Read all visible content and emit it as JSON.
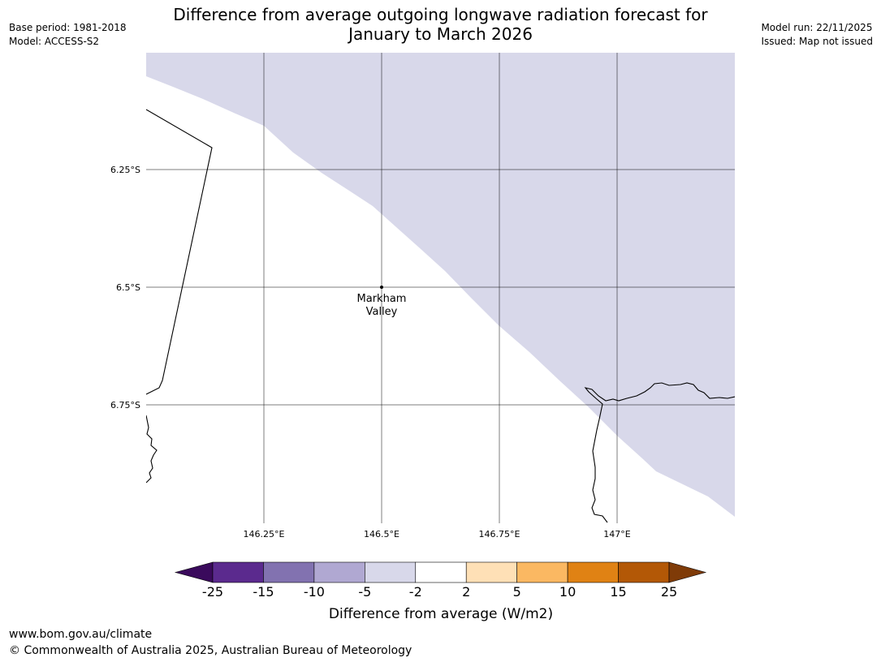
{
  "header": {
    "title_line1": "Difference from average outgoing longwave radiation forecast for",
    "title_line2": "January to March 2026",
    "base_period": "Base period: 1981-2018",
    "model": "Model: ACCESS-S2",
    "model_run": "Model run: 22/11/2025",
    "issued": "Issued: Map not issued"
  },
  "map": {
    "lat_labels": [
      "6.25°S",
      "6.5°S",
      "6.75°S"
    ],
    "lon_labels": [
      "146.25°E",
      "146.5°E",
      "146.75°E",
      "147°E"
    ],
    "place_marker": {
      "line1": "Markham",
      "line2": "Valley"
    },
    "shading_category": "-5 to -2",
    "shading_color": "#d8d8ea"
  },
  "colorbar": {
    "label": "Difference from average (W/m2)",
    "ticks": [
      "-25",
      "-15",
      "-10",
      "-5",
      "-2",
      "2",
      "5",
      "10",
      "15",
      "25"
    ],
    "colors": [
      "#3a0a5c",
      "#5b2a8e",
      "#8272b0",
      "#b0a8d2",
      "#d8d8ea",
      "#ffffff",
      "#fee0b6",
      "#fbb862",
      "#e08214",
      "#b35806",
      "#7f3b08"
    ]
  },
  "footer": {
    "url": "www.bom.gov.au/climate",
    "copyright": "© Commonwealth of Australia 2025, Australian Bureau of Meteorology"
  }
}
